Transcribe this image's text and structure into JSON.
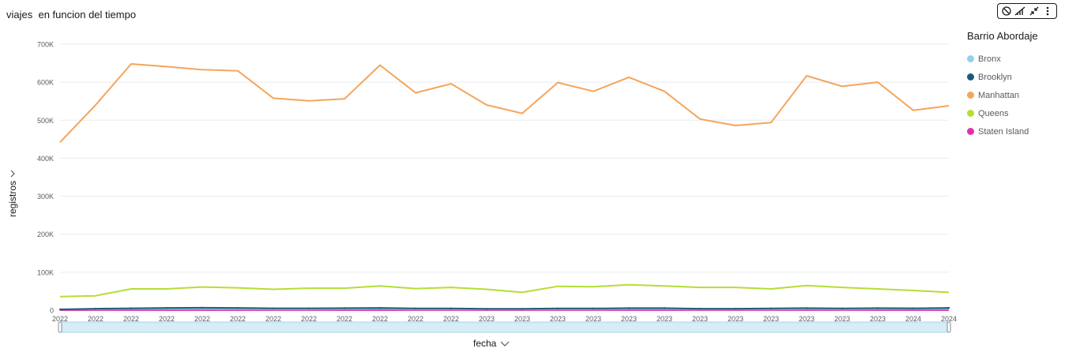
{
  "title": "viajes  en funcion del tiempo",
  "toolbar": {
    "icons": [
      "focus-icon",
      "chart-options-icon",
      "collapse-icon",
      "more-options-icon"
    ]
  },
  "legend": {
    "title": "Barrio Abordaje",
    "items": [
      {
        "label": "Bronx",
        "color": "#8fd3e8"
      },
      {
        "label": "Brooklyn",
        "color": "#1f5a74"
      },
      {
        "label": "Manhattan",
        "color": "#f5a55b"
      },
      {
        "label": "Queens",
        "color": "#b6dd35"
      },
      {
        "label": "Staten Island",
        "color": "#e030b0"
      }
    ]
  },
  "axis": {
    "ylabel": "registros",
    "xlabel": "fecha"
  },
  "chart_data": {
    "type": "line",
    "title": "viajes  en funcion del tiempo",
    "xlabel": "fecha",
    "ylabel": "registros",
    "ylim": [
      0,
      700000
    ],
    "yticks": [
      0,
      100000,
      200000,
      300000,
      400000,
      500000,
      600000,
      700000
    ],
    "ytick_labels": [
      "0",
      "100K",
      "200K",
      "300K",
      "400K",
      "500K",
      "600K",
      "700K"
    ],
    "grid": true,
    "legend_position": "right",
    "categories": [
      "2022",
      "2022",
      "2022",
      "2022",
      "2022",
      "2022",
      "2022",
      "2022",
      "2022",
      "2022",
      "2022",
      "2022",
      "2023",
      "2023",
      "2023",
      "2023",
      "2023",
      "2023",
      "2023",
      "2023",
      "2023",
      "2023",
      "2023",
      "2023",
      "2024",
      "2024"
    ],
    "series": [
      {
        "name": "Bronx",
        "color": "#8fd3e8",
        "values": [
          2500,
          3000,
          3500,
          4000,
          4000,
          3500,
          3000,
          3000,
          3500,
          4000,
          3000,
          3000,
          2500,
          2500,
          3000,
          3000,
          3500,
          3500,
          3000,
          3000,
          3000,
          3500,
          3000,
          3500,
          3500,
          4000
        ]
      },
      {
        "name": "Brooklyn",
        "color": "#1f5a74",
        "values": [
          2000,
          4000,
          5000,
          6000,
          6500,
          6000,
          5000,
          5000,
          5500,
          6000,
          4500,
          4500,
          3500,
          3500,
          4500,
          4500,
          5500,
          5500,
          4000,
          4000,
          4500,
          5500,
          4500,
          5500,
          5000,
          6000
        ]
      },
      {
        "name": "Manhattan",
        "color": "#f5a55b",
        "values": [
          442000,
          540000,
          648000,
          641000,
          633000,
          630000,
          558000,
          551000,
          556000,
          645000,
          572000,
          596000,
          540000,
          518000,
          599000,
          576000,
          613000,
          576000,
          503000,
          486000,
          494000,
          617000,
          589000,
          600000,
          526000,
          538000
        ]
      },
      {
        "name": "Queens",
        "color": "#b6dd35",
        "values": [
          36000,
          38000,
          56000,
          56000,
          61000,
          59000,
          55000,
          58000,
          58000,
          64000,
          57000,
          60000,
          55000,
          47000,
          63000,
          62000,
          67000,
          64000,
          60000,
          60000,
          56000,
          65000,
          60000,
          56000,
          52000,
          47000
        ]
      },
      {
        "name": "Staten Island",
        "color": "#e030b0",
        "values": [
          200,
          200,
          300,
          300,
          300,
          300,
          300,
          300,
          300,
          300,
          300,
          300,
          200,
          200,
          300,
          300,
          300,
          300,
          300,
          300,
          300,
          300,
          300,
          300,
          300,
          300
        ]
      }
    ]
  }
}
